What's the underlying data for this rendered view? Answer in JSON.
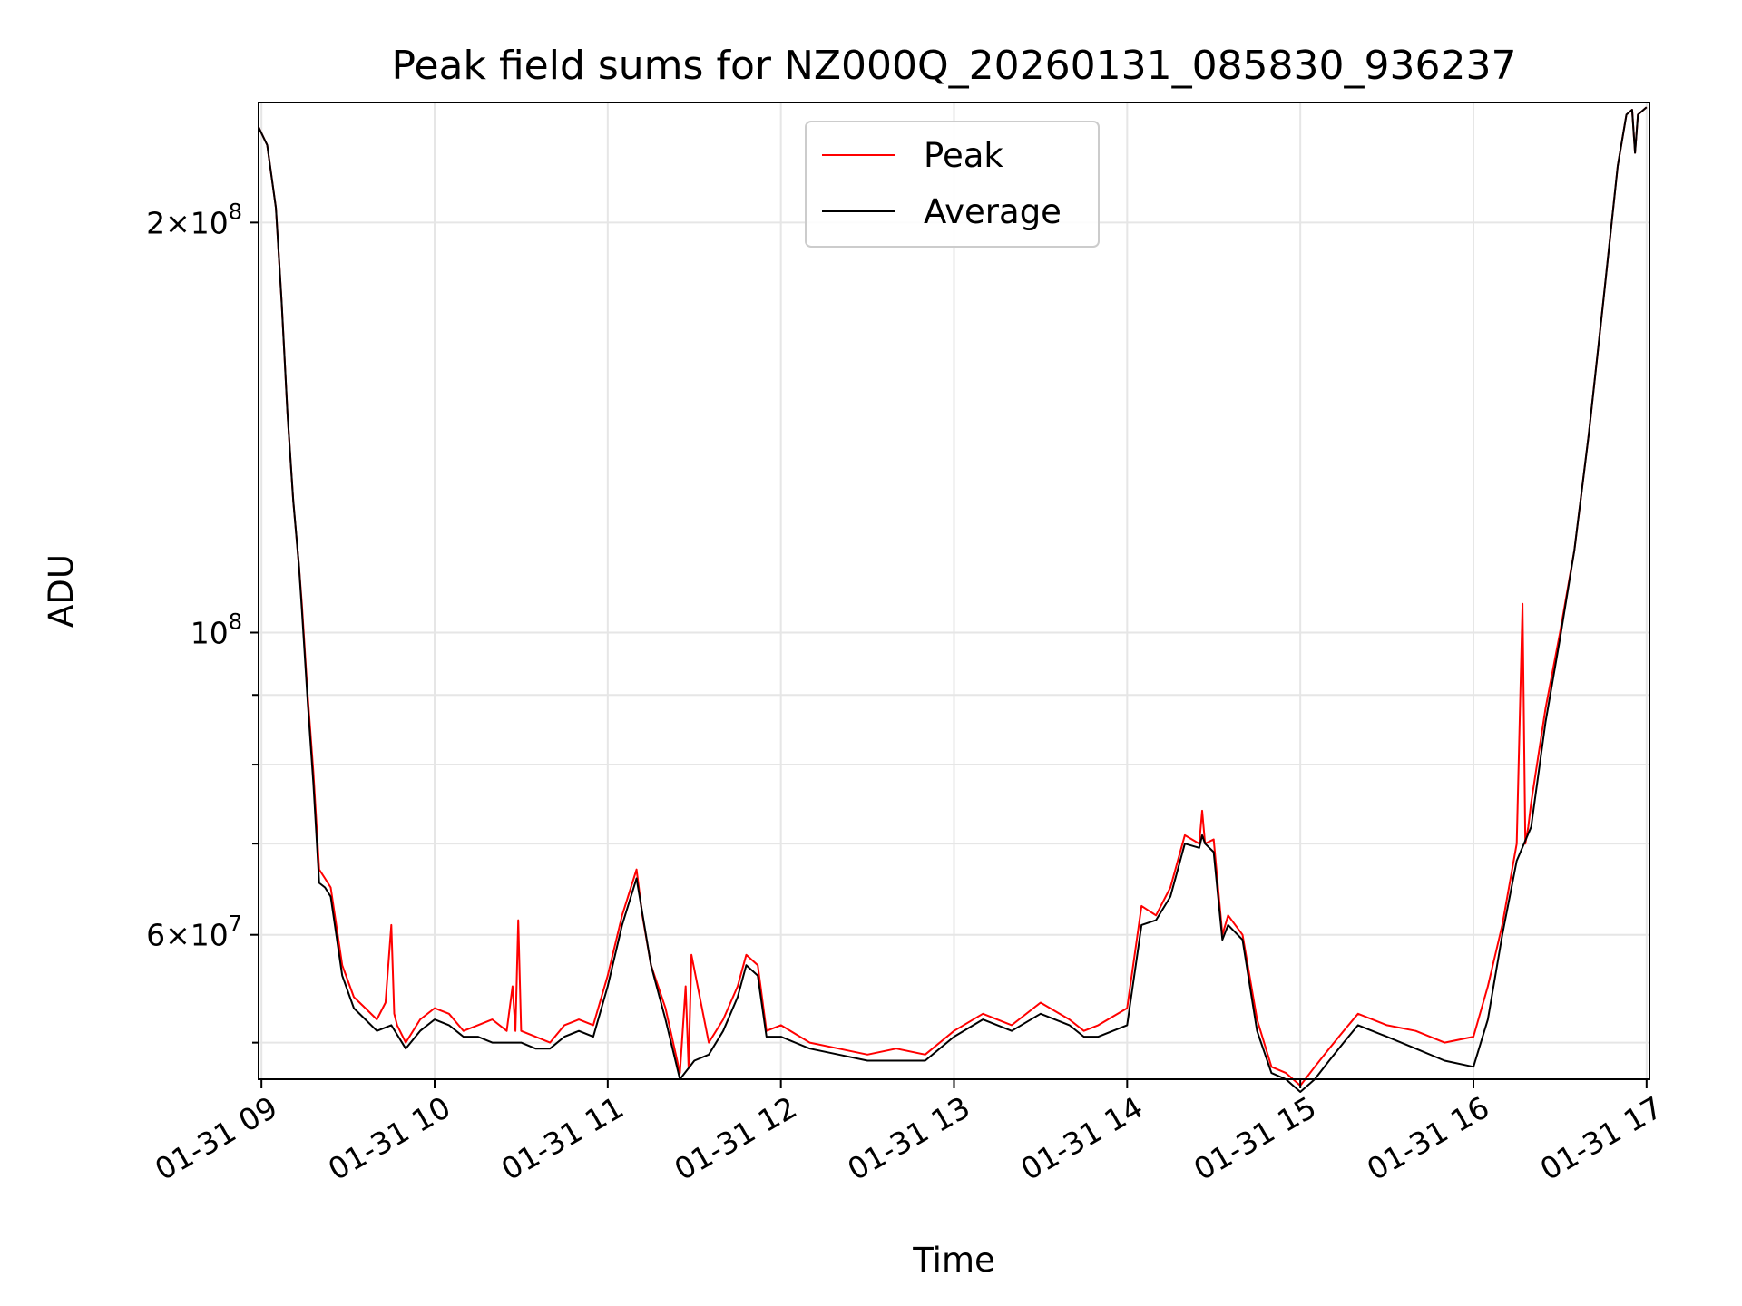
{
  "chart_data": {
    "type": "line",
    "title": "Peak field sums for NZ000Q_20260131_085830_936237",
    "xlabel": "Time",
    "ylabel": "ADU",
    "x_range": [
      "01-31 08:59",
      "01-31 17:01"
    ],
    "x_ticks": [
      {
        "value": "01-31 09:00",
        "label": "01-31 09"
      },
      {
        "value": "01-31 10:00",
        "label": "01-31 10"
      },
      {
        "value": "01-31 11:00",
        "label": "01-31 11"
      },
      {
        "value": "01-31 12:00",
        "label": "01-31 12"
      },
      {
        "value": "01-31 13:00",
        "label": "01-31 13"
      },
      {
        "value": "01-31 14:00",
        "label": "01-31 14"
      },
      {
        "value": "01-31 15:00",
        "label": "01-31 15"
      },
      {
        "value": "01-31 16:00",
        "label": "01-31 16"
      },
      {
        "value": "01-31 17:00",
        "label": "01-31 17"
      }
    ],
    "y_scale": "log",
    "ylim": [
      47000000,
      245000000
    ],
    "y_major_ticks": [
      {
        "value": 60000000,
        "base": "6",
        "exp": "7"
      },
      {
        "value": 100000000,
        "base": "",
        "exp": "8"
      },
      {
        "value": 200000000,
        "base": "2",
        "exp": "8"
      }
    ],
    "y_minor_ticks": [
      50000000,
      70000000,
      80000000,
      90000000
    ],
    "grid": true,
    "legend_position": "top-center",
    "series": [
      {
        "name": "Peak",
        "color": "#ff0000",
        "x": [
          "08:59",
          "09:02",
          "09:05",
          "09:07",
          "09:09",
          "09:11",
          "09:13",
          "09:14",
          "09:16",
          "09:18",
          "09:20",
          "09:22",
          "09:24",
          "09:28",
          "09:32",
          "09:36",
          "09:40",
          "09:43",
          "09:45",
          "09:46",
          "09:47",
          "09:50",
          "09:55",
          "10:00",
          "10:05",
          "10:10",
          "10:15",
          "10:20",
          "10:25",
          "10:27",
          "10:28",
          "10:29",
          "10:30",
          "10:35",
          "10:40",
          "10:45",
          "10:50",
          "10:55",
          "11:00",
          "11:05",
          "11:10",
          "11:12",
          "11:15",
          "11:20",
          "11:25",
          "11:27",
          "11:28",
          "11:29",
          "11:35",
          "11:40",
          "11:45",
          "11:48",
          "11:52",
          "11:55",
          "12:00",
          "12:10",
          "12:20",
          "12:30",
          "12:40",
          "12:50",
          "13:00",
          "13:10",
          "13:20",
          "13:30",
          "13:40",
          "13:45",
          "13:50",
          "14:00",
          "14:05",
          "14:10",
          "14:15",
          "14:20",
          "14:25",
          "14:26",
          "14:27",
          "14:30",
          "14:33",
          "14:35",
          "14:40",
          "14:45",
          "14:50",
          "14:55",
          "15:00",
          "15:05",
          "15:10",
          "15:15",
          "15:20",
          "15:30",
          "15:40",
          "15:50",
          "16:00",
          "16:05",
          "16:10",
          "16:15",
          "16:17",
          "16:18",
          "16:19",
          "16:20",
          "16:25",
          "16:30",
          "16:35",
          "16:40",
          "16:45",
          "16:50",
          "16:53",
          "16:55",
          "16:56",
          "16:57",
          "17:00"
        ],
        "y": [
          235000000,
          228000000,
          205000000,
          175000000,
          145000000,
          125000000,
          112000000,
          105000000,
          90000000,
          79000000,
          67000000,
          66000000,
          65000000,
          57000000,
          54000000,
          53000000,
          52000000,
          53500000,
          61000000,
          52500000,
          51500000,
          50000000,
          52000000,
          53000000,
          52500000,
          51000000,
          51500000,
          52000000,
          51000000,
          55000000,
          51000000,
          61500000,
          51000000,
          50500000,
          50000000,
          51500000,
          52000000,
          51500000,
          56000000,
          62000000,
          67000000,
          62000000,
          57000000,
          53000000,
          47500000,
          55000000,
          48000000,
          58000000,
          50000000,
          52000000,
          55000000,
          58000000,
          57000000,
          51000000,
          51500000,
          50000000,
          49500000,
          49000000,
          49500000,
          49000000,
          51000000,
          52500000,
          51500000,
          53500000,
          52000000,
          51000000,
          51500000,
          53000000,
          63000000,
          62000000,
          65000000,
          71000000,
          70000000,
          74000000,
          70000000,
          70500000,
          60000000,
          62000000,
          60000000,
          52000000,
          48000000,
          47500000,
          46500000,
          48000000,
          49500000,
          51000000,
          52500000,
          51500000,
          51000000,
          50000000,
          50500000,
          55000000,
          61000000,
          70000000,
          105000000,
          70000000,
          72000000,
          75000000,
          88000000,
          100000000,
          115000000,
          140000000,
          175000000,
          220000000,
          240000000,
          242000000,
          225000000,
          240000000,
          243000000
        ]
      },
      {
        "name": "Average",
        "color": "#000000",
        "x": [
          "08:59",
          "09:02",
          "09:05",
          "09:07",
          "09:09",
          "09:11",
          "09:13",
          "09:14",
          "09:16",
          "09:18",
          "09:20",
          "09:22",
          "09:24",
          "09:28",
          "09:32",
          "09:36",
          "09:40",
          "09:45",
          "09:50",
          "09:55",
          "10:00",
          "10:05",
          "10:10",
          "10:15",
          "10:20",
          "10:25",
          "10:30",
          "10:35",
          "10:40",
          "10:45",
          "10:50",
          "10:55",
          "11:00",
          "11:05",
          "11:10",
          "11:15",
          "11:20",
          "11:25",
          "11:30",
          "11:35",
          "11:40",
          "11:45",
          "11:48",
          "11:52",
          "11:55",
          "12:00",
          "12:10",
          "12:20",
          "12:30",
          "12:40",
          "12:50",
          "13:00",
          "13:10",
          "13:20",
          "13:30",
          "13:40",
          "13:45",
          "13:50",
          "14:00",
          "14:05",
          "14:10",
          "14:15",
          "14:20",
          "14:25",
          "14:26",
          "14:27",
          "14:30",
          "14:33",
          "14:35",
          "14:40",
          "14:45",
          "14:50",
          "14:55",
          "15:00",
          "15:05",
          "15:10",
          "15:15",
          "15:20",
          "15:30",
          "15:40",
          "15:50",
          "16:00",
          "16:05",
          "16:10",
          "16:15",
          "16:20",
          "16:25",
          "16:30",
          "16:35",
          "16:40",
          "16:45",
          "16:50",
          "16:53",
          "16:55",
          "16:56",
          "16:57",
          "17:00"
        ],
        "y": [
          235000000,
          228000000,
          205000000,
          175000000,
          145000000,
          125000000,
          112000000,
          104000000,
          89000000,
          77500000,
          65500000,
          65000000,
          64000000,
          56000000,
          53000000,
          52000000,
          51000000,
          51500000,
          49500000,
          51000000,
          52000000,
          51500000,
          50500000,
          50500000,
          50000000,
          50000000,
          50000000,
          49500000,
          49500000,
          50500000,
          51000000,
          50500000,
          55000000,
          61000000,
          66000000,
          57000000,
          52000000,
          47000000,
          48500000,
          49000000,
          51000000,
          54000000,
          57000000,
          56000000,
          50500000,
          50500000,
          49500000,
          49000000,
          48500000,
          48500000,
          48500000,
          50500000,
          52000000,
          51000000,
          52500000,
          51500000,
          50500000,
          50500000,
          51500000,
          61000000,
          61500000,
          64000000,
          70000000,
          69500000,
          71000000,
          70000000,
          69000000,
          59500000,
          61000000,
          59500000,
          51000000,
          47500000,
          47000000,
          46000000,
          47000000,
          48500000,
          50000000,
          51500000,
          50500000,
          49500000,
          48500000,
          48000000,
          52000000,
          60000000,
          68000000,
          72000000,
          86000000,
          99000000,
          115000000,
          140000000,
          175000000,
          220000000,
          240000000,
          242000000,
          225000000,
          240000000,
          243000000
        ]
      }
    ]
  }
}
